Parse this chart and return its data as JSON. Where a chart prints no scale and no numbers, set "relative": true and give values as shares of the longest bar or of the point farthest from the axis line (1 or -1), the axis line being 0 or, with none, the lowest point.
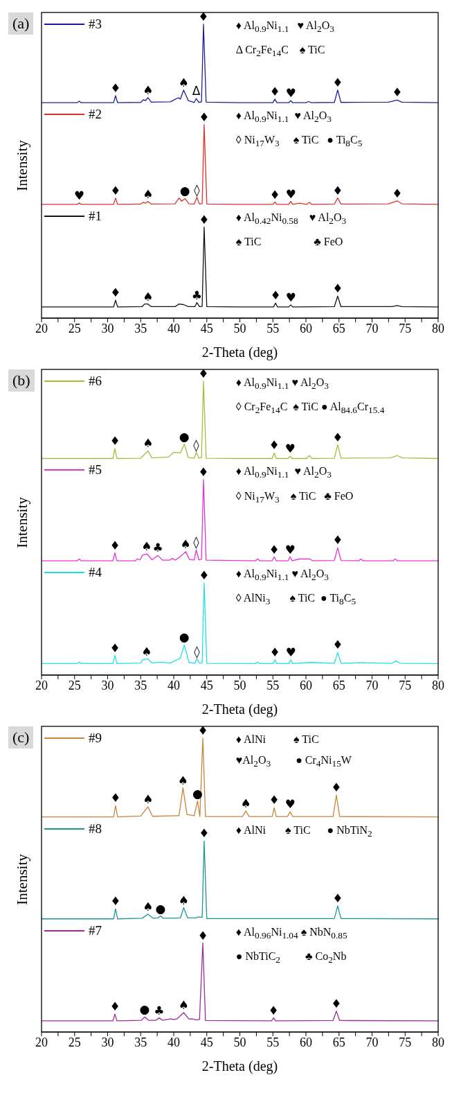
{
  "chart_data": [
    {
      "type": "line",
      "title": "(a)",
      "legend": "top left",
      "xlabel": "2-Theta (deg)",
      "ylabel": "Intensity",
      "relative": true,
      "xlim": [
        20,
        80
      ],
      "xticks": [
        20,
        {
          "value": 22.5,
          "label": null
        },
        25,
        {
          "value": 27.5,
          "label": null
        },
        30,
        {
          "value": 32.5,
          "label": null
        },
        35,
        {
          "value": 37.5,
          "label": null
        },
        40,
        {
          "value": 42.5,
          "label": null
        },
        45,
        {
          "value": 47.5,
          "label": null
        },
        50,
        {
          "value": 52.5,
          "label": null
        },
        55,
        {
          "value": 57.5,
          "label": null
        },
        60,
        {
          "value": 62.5,
          "label": null
        },
        65,
        {
          "value": 67.5,
          "label": null
        },
        70,
        {
          "value": 72.5,
          "label": null
        },
        75,
        {
          "value": 77.5,
          "label": null
        },
        80
      ],
      "series": [
        {
          "name": "#3",
          "color": "#1c1c99",
          "x": [
            20,
            25.4,
            25.7,
            26.0,
            30.9,
            31.2,
            31.5,
            35.0,
            35.4,
            35.7,
            36.1,
            36.6,
            39.5,
            40.7,
            41.0,
            41.5,
            42.2,
            43.1,
            43.4,
            43.8,
            44.2,
            44.5,
            44.9,
            50,
            55.0,
            55.3,
            55.6,
            57.4,
            57.7,
            58.0,
            60.0,
            60.4,
            60.8,
            64.3,
            64.8,
            65.3,
            72.5,
            73.8,
            74.5,
            80
          ],
          "values": [
            0.733,
            0.733,
            0.738,
            0.733,
            0.733,
            0.757,
            0.733,
            0.734,
            0.743,
            0.74,
            0.75,
            0.735,
            0.736,
            0.75,
            0.745,
            0.776,
            0.74,
            0.734,
            0.747,
            0.734,
            0.736,
            1.0,
            0.735,
            0.733,
            0.733,
            0.745,
            0.733,
            0.733,
            0.74,
            0.733,
            0.733,
            0.737,
            0.733,
            0.734,
            0.776,
            0.734,
            0.735,
            0.742,
            0.735,
            0.733
          ]
        },
        {
          "name": "#2",
          "color": "#e0302a",
          "x": [
            20,
            25.4,
            25.7,
            26.0,
            30.9,
            31.2,
            31.5,
            35.0,
            35.4,
            35.7,
            36.1,
            36.6,
            40.2,
            40.8,
            41.2,
            41.7,
            42.3,
            43.1,
            43.5,
            43.9,
            44.3,
            44.6,
            45.0,
            50,
            55.0,
            55.3,
            55.6,
            57.4,
            57.7,
            58.0,
            59.0,
            60.1,
            60.5,
            60.9,
            64.3,
            64.8,
            65.3,
            72.5,
            73.8,
            74.5,
            80
          ],
          "values": [
            0.387,
            0.387,
            0.392,
            0.387,
            0.387,
            0.409,
            0.387,
            0.388,
            0.394,
            0.391,
            0.397,
            0.388,
            0.389,
            0.409,
            0.398,
            0.407,
            0.389,
            0.388,
            0.411,
            0.388,
            0.39,
            0.659,
            0.388,
            0.387,
            0.387,
            0.395,
            0.387,
            0.387,
            0.397,
            0.387,
            0.391,
            0.387,
            0.394,
            0.387,
            0.388,
            0.409,
            0.388,
            0.389,
            0.399,
            0.389,
            0.387
          ]
        },
        {
          "name": "#1",
          "color": "#111111",
          "x": [
            20,
            30.9,
            31.2,
            31.5,
            35.2,
            35.6,
            36.1,
            36.6,
            40.2,
            40.8,
            41.5,
            42.2,
            43.2,
            43.5,
            43.9,
            44.3,
            44.6,
            45.0,
            50,
            55.1,
            55.4,
            55.7,
            57.4,
            57.7,
            58.0,
            64.3,
            64.8,
            65.3,
            73.0,
            73.8,
            74.5,
            80
          ],
          "values": [
            0.038,
            0.038,
            0.061,
            0.038,
            0.039,
            0.048,
            0.048,
            0.039,
            0.039,
            0.048,
            0.046,
            0.039,
            0.039,
            0.053,
            0.039,
            0.04,
            0.31,
            0.039,
            0.038,
            0.038,
            0.051,
            0.038,
            0.038,
            0.045,
            0.038,
            0.039,
            0.075,
            0.039,
            0.039,
            0.043,
            0.039,
            0.038
          ]
        }
      ],
      "annotations": [
        "♦ Al$_{0.9}$Ni$_{1.1}$   ♥ Al$_{2}$O$_{3}$\nΔ Cr$_{2}$Fe$_{14}$C    ♠ TiC",
        "♦ Al$_{0.9}$Ni$_{1.1}$  ♥ Al$_{2}$O$_{3}$\n◊ Ni$_{17}$W$_{3}$     ♠ TiC   ● Ti$_{8}$C$_{5}$",
        "♦ Al$_{0.42}$Ni$_{0.58}$    ♥ Al$_{2}$O$_{3}$\n♠ TiC                   ♣ FeO",
        {
          "text": "♦",
          "x": 31.2,
          "y": 0.757
        },
        {
          "text": "♠",
          "x": 36.1,
          "y": 0.75
        },
        {
          "text": "♠",
          "x": 41.5,
          "y": 0.776
        },
        {
          "text": "Δ",
          "x": 43.4,
          "y": 0.747
        },
        {
          "text": "♦",
          "x": 44.5,
          "y": 1.0
        },
        {
          "text": "♦",
          "x": 55.3,
          "y": 0.745
        },
        {
          "text": "♥",
          "x": 57.7,
          "y": 0.74
        },
        {
          "text": "♦",
          "x": 64.8,
          "y": 0.776
        },
        {
          "text": "♦",
          "x": 73.8,
          "y": 0.742
        },
        {
          "text": "♥",
          "x": 25.7,
          "y": 0.392
        },
        {
          "text": "♦",
          "x": 31.2,
          "y": 0.409
        },
        {
          "text": "♠",
          "x": 36.1,
          "y": 0.397
        },
        {
          "text": "●",
          "x": 41.7,
          "y": 0.407
        },
        {
          "text": "◊",
          "x": 43.5,
          "y": 0.411
        },
        {
          "text": "♦",
          "x": 44.6,
          "y": 0.659
        },
        {
          "text": "♦",
          "x": 55.3,
          "y": 0.395
        },
        {
          "text": "♥",
          "x": 57.7,
          "y": 0.397
        },
        {
          "text": "♦",
          "x": 64.8,
          "y": 0.409
        },
        {
          "text": "♦",
          "x": 73.8,
          "y": 0.399
        },
        {
          "text": "♦",
          "x": 31.2,
          "y": 0.061
        },
        {
          "text": "♠",
          "x": 36.1,
          "y": 0.048
        },
        {
          "text": "♣",
          "x": 43.5,
          "y": 0.053
        },
        {
          "text": "♦",
          "x": 44.6,
          "y": 0.31
        },
        {
          "text": "♦",
          "x": 55.4,
          "y": 0.051
        },
        {
          "text": "♥",
          "x": 57.7,
          "y": 0.045
        },
        {
          "text": "♦",
          "x": 64.8,
          "y": 0.075
        }
      ]
    },
    {
      "type": "line",
      "title": "(b)",
      "legend": "top left",
      "xlabel": "2-Theta (deg)",
      "ylabel": "Intensity",
      "relative": true,
      "xlim": [
        20,
        80
      ],
      "xticks": [
        20,
        {
          "value": 22.5,
          "label": null
        },
        25,
        {
          "value": 27.5,
          "label": null
        },
        30,
        {
          "value": 32.5,
          "label": null
        },
        35,
        {
          "value": 37.5,
          "label": null
        },
        40,
        {
          "value": 42.5,
          "label": null
        },
        45,
        {
          "value": 47.5,
          "label": null
        },
        50,
        {
          "value": 52.5,
          "label": null
        },
        55,
        {
          "value": 57.5,
          "label": null
        },
        60,
        {
          "value": 62.5,
          "label": null
        },
        65,
        {
          "value": 67.5,
          "label": null
        },
        70,
        {
          "value": 72.5,
          "label": null
        },
        75,
        {
          "value": 77.5,
          "label": null
        },
        80
      ],
      "series": [
        {
          "name": "#6",
          "color": "#a6bd3c",
          "x": [
            20,
            30.8,
            31.1,
            31.4,
            35.0,
            35.4,
            36.1,
            36.7,
            39.2,
            40.0,
            41.0,
            41.6,
            42.2,
            43.1,
            43.4,
            43.8,
            44.2,
            44.5,
            44.9,
            50,
            54.9,
            55.2,
            55.5,
            57.3,
            57.6,
            57.9,
            60.1,
            60.5,
            60.9,
            64.3,
            64.8,
            65.3,
            72.8,
            73.8,
            74.6,
            80
          ],
          "values": [
            0.737,
            0.737,
            0.77,
            0.737,
            0.738,
            0.747,
            0.763,
            0.739,
            0.742,
            0.758,
            0.756,
            0.786,
            0.74,
            0.738,
            0.758,
            0.738,
            0.74,
            1.0,
            0.738,
            0.737,
            0.737,
            0.756,
            0.737,
            0.737,
            0.745,
            0.737,
            0.737,
            0.747,
            0.737,
            0.738,
            0.784,
            0.738,
            0.739,
            0.747,
            0.739,
            0.737
          ]
        },
        {
          "name": "#5",
          "color": "#e232d8",
          "x": [
            20,
            25.4,
            25.7,
            26.0,
            30.8,
            31.1,
            31.4,
            34.2,
            34.5,
            34.9,
            35.3,
            36.0,
            36.7,
            37.6,
            38.3,
            39.4,
            39.8,
            40.2,
            41.0,
            41.8,
            42.4,
            43.1,
            43.4,
            43.8,
            44.2,
            44.5,
            44.9,
            52.4,
            52.7,
            53.0,
            54.9,
            55.2,
            55.5,
            57.3,
            57.6,
            57.9,
            59.0,
            60.6,
            61.0,
            64.3,
            64.8,
            65.3,
            68.0,
            68.3,
            68.6,
            73.2,
            73.5,
            73.8,
            80
          ],
          "values": [
            0.389,
            0.389,
            0.395,
            0.389,
            0.389,
            0.416,
            0.389,
            0.389,
            0.395,
            0.392,
            0.409,
            0.412,
            0.392,
            0.407,
            0.391,
            0.391,
            0.397,
            0.391,
            0.403,
            0.42,
            0.393,
            0.392,
            0.426,
            0.392,
            0.394,
            0.665,
            0.391,
            0.389,
            0.395,
            0.389,
            0.389,
            0.402,
            0.389,
            0.389,
            0.402,
            0.389,
            0.395,
            0.395,
            0.389,
            0.39,
            0.433,
            0.39,
            0.389,
            0.395,
            0.389,
            0.389,
            0.395,
            0.389,
            0.389
          ]
        },
        {
          "name": "#4",
          "color": "#1ee0e6",
          "x": [
            20,
            25.4,
            25.7,
            26.0,
            30.8,
            31.1,
            31.4,
            35.0,
            35.3,
            36.1,
            36.7,
            38.0,
            39.5,
            40.5,
            41.0,
            41.6,
            42.3,
            43.2,
            43.5,
            43.9,
            44.3,
            44.6,
            45.0,
            52.4,
            52.7,
            53.0,
            55.0,
            55.3,
            55.6,
            57.4,
            57.7,
            58.0,
            60.8,
            64.3,
            64.8,
            65.3,
            68.3,
            73.0,
            73.6,
            74.3,
            80
          ],
          "values": [
            0.039,
            0.039,
            0.044,
            0.039,
            0.039,
            0.067,
            0.039,
            0.041,
            0.052,
            0.055,
            0.041,
            0.044,
            0.041,
            0.052,
            0.058,
            0.103,
            0.043,
            0.04,
            0.055,
            0.04,
            0.042,
            0.314,
            0.04,
            0.039,
            0.044,
            0.039,
            0.039,
            0.052,
            0.039,
            0.039,
            0.052,
            0.039,
            0.043,
            0.04,
            0.077,
            0.04,
            0.042,
            0.04,
            0.048,
            0.04,
            0.039
          ]
        }
      ],
      "annotations": [
        "♦ Al$_{0.9}$Ni$_{1.1}$ ♥ Al$_{2}$O$_{3}$\n◊ Cr$_{2}$Fe$_{14}$C  ♠ TiC ● Al$_{84.6}$Cr$_{15.4}$",
        "♦ Al$_{0.9}$Ni$_{1.1}$  ♥ Al$_{2}$O$_{3}$\n◊ Ni$_{17}$W$_{3}$    ♠ TiC   ♣ FeO",
        "♦ Al$_{0.9}$Ni$_{1.1}$ ♥ Al$_{2}$O$_{3}$\n◊ AlNi$_{3}$       ♠ TiC  ● Ti$_{8}$C$_{5}$",
        {
          "text": "♦",
          "x": 31.1,
          "y": 0.77
        },
        {
          "text": "♠",
          "x": 36.1,
          "y": 0.763
        },
        {
          "text": "●",
          "x": 41.6,
          "y": 0.786
        },
        {
          "text": "◊",
          "x": 43.4,
          "y": 0.758
        },
        {
          "text": "♦",
          "x": 44.5,
          "y": 1.0
        },
        {
          "text": "♦",
          "x": 55.2,
          "y": 0.756
        },
        {
          "text": "♥",
          "x": 57.6,
          "y": 0.745
        },
        {
          "text": "♦",
          "x": 64.8,
          "y": 0.784
        },
        {
          "text": "♦",
          "x": 31.1,
          "y": 0.416
        },
        {
          "text": "♠",
          "x": 35.9,
          "y": 0.412
        },
        {
          "text": "♣",
          "x": 37.6,
          "y": 0.407
        },
        {
          "text": "♠",
          "x": 41.8,
          "y": 0.42
        },
        {
          "text": "◊",
          "x": 43.4,
          "y": 0.426
        },
        {
          "text": "♦",
          "x": 44.5,
          "y": 0.665
        },
        {
          "text": "♦",
          "x": 55.2,
          "y": 0.402
        },
        {
          "text": "♥",
          "x": 57.6,
          "y": 0.402
        },
        {
          "text": "♦",
          "x": 64.8,
          "y": 0.433
        },
        {
          "text": "♦",
          "x": 31.1,
          "y": 0.067
        },
        {
          "text": "♠",
          "x": 35.9,
          "y": 0.055
        },
        {
          "text": "●",
          "x": 41.6,
          "y": 0.103
        },
        {
          "text": "◊",
          "x": 43.5,
          "y": 0.055
        },
        {
          "text": "♦",
          "x": 44.6,
          "y": 0.314
        },
        {
          "text": "♦",
          "x": 55.3,
          "y": 0.052
        },
        {
          "text": "♥",
          "x": 57.7,
          "y": 0.052
        },
        {
          "text": "♦",
          "x": 64.8,
          "y": 0.077
        }
      ]
    },
    {
      "type": "line",
      "title": "(c)",
      "legend": "top left",
      "xlabel": "2-Theta (deg)",
      "ylabel": "Intensity",
      "relative": true,
      "xlim": [
        20,
        80
      ],
      "xticks": [
        20,
        {
          "value": 22.5,
          "label": null
        },
        25,
        {
          "value": 27.5,
          "label": null
        },
        30,
        {
          "value": 32.5,
          "label": null
        },
        35,
        {
          "value": 37.5,
          "label": null
        },
        40,
        {
          "value": 42.5,
          "label": null
        },
        45,
        {
          "value": 47.5,
          "label": null
        },
        50,
        {
          "value": 52.5,
          "label": null
        },
        55,
        {
          "value": 57.5,
          "label": null
        },
        60,
        {
          "value": 62.5,
          "label": null
        },
        65,
        {
          "value": 67.5,
          "label": null
        },
        70,
        {
          "value": 72.5,
          "label": null
        },
        75,
        {
          "value": 77.5,
          "label": null
        },
        80
      ],
      "series": [
        {
          "name": "#9",
          "color": "#c8843a",
          "x": [
            20,
            30.9,
            31.2,
            31.5,
            35.0,
            35.6,
            36.1,
            36.8,
            40.8,
            41.4,
            42.0,
            43.1,
            43.6,
            43.95,
            44.4,
            44.8,
            50.4,
            50.9,
            51.4,
            54.9,
            55.2,
            55.5,
            57.2,
            57.6,
            58.0,
            64.1,
            64.6,
            65.1,
            80
          ],
          "values": [
            0.732,
            0.732,
            0.77,
            0.732,
            0.735,
            0.752,
            0.766,
            0.734,
            0.736,
            0.831,
            0.74,
            0.736,
            0.786,
            0.733,
            1.0,
            0.733,
            0.733,
            0.752,
            0.733,
            0.733,
            0.763,
            0.733,
            0.733,
            0.749,
            0.733,
            0.733,
            0.806,
            0.733,
            0.732
          ]
        },
        {
          "name": "#8",
          "color": "#1c9595",
          "x": [
            20,
            30.9,
            31.2,
            31.5,
            35.2,
            36.1,
            36.9,
            37.6,
            38.0,
            38.4,
            41.0,
            41.5,
            42.1,
            43.4,
            43.7,
            44.3,
            44.6,
            45.0,
            64.3,
            64.8,
            65.3,
            80
          ],
          "values": [
            0.385,
            0.385,
            0.419,
            0.385,
            0.387,
            0.401,
            0.387,
            0.388,
            0.395,
            0.387,
            0.388,
            0.423,
            0.388,
            0.388,
            0.392,
            0.39,
            0.65,
            0.386,
            0.386,
            0.429,
            0.386,
            0.385
          ]
        },
        {
          "name": "#7",
          "color": "#9a2a9a",
          "x": [
            20,
            30.8,
            31.1,
            31.4,
            35.1,
            35.6,
            36.2,
            37.3,
            37.8,
            38.3,
            39.6,
            40.0,
            40.5,
            41.5,
            42.3,
            42.7,
            43.4,
            43.9,
            44.4,
            44.8,
            54.8,
            55.1,
            55.4,
            64.1,
            64.6,
            65.1,
            80
          ],
          "values": [
            0.038,
            0.038,
            0.061,
            0.038,
            0.04,
            0.051,
            0.04,
            0.04,
            0.048,
            0.04,
            0.045,
            0.042,
            0.045,
            0.066,
            0.044,
            0.045,
            0.041,
            0.043,
            0.303,
            0.039,
            0.038,
            0.048,
            0.038,
            0.039,
            0.071,
            0.039,
            0.038
          ]
        }
      ],
      "annotations": [
        "♦ AlNi          ♠ TiC\n♥Al$_{2}$O$_{3}$         ● Cr$_{4}$Ni$_{15}$W",
        "♦ AlNi       ♠ TiC      ● NbTiN$_{2}$",
        "♦ Al$_{0.96}$Ni$_{1.04}$ ♠ NbN$_{0.85}$\n● NbTiC$_{2}$         ♣ Co$_{2}$Nb",
        {
          "text": "♦",
          "x": 31.2,
          "y": 0.77
        },
        {
          "text": "♠",
          "x": 36.1,
          "y": 0.766
        },
        {
          "text": "♠",
          "x": 41.4,
          "y": 0.831
        },
        {
          "text": "●",
          "x": 43.6,
          "y": 0.786
        },
        {
          "text": "♦",
          "x": 44.4,
          "y": 1.0
        },
        {
          "text": "♠",
          "x": 50.9,
          "y": 0.752
        },
        {
          "text": "♦",
          "x": 55.2,
          "y": 0.763
        },
        {
          "text": "♥",
          "x": 57.6,
          "y": 0.749
        },
        {
          "text": "♦",
          "x": 64.6,
          "y": 0.806
        },
        {
          "text": "♦",
          "x": 31.2,
          "y": 0.419
        },
        {
          "text": "♠",
          "x": 36.1,
          "y": 0.401
        },
        {
          "text": "●",
          "x": 38.0,
          "y": 0.395
        },
        {
          "text": "♠",
          "x": 41.5,
          "y": 0.423
        },
        {
          "text": "♦",
          "x": 44.6,
          "y": 0.65
        },
        {
          "text": "♦",
          "x": 64.8,
          "y": 0.429
        },
        {
          "text": "♦",
          "x": 31.1,
          "y": 0.061
        },
        {
          "text": "●",
          "x": 35.6,
          "y": 0.051
        },
        {
          "text": "♣",
          "x": 37.8,
          "y": 0.048
        },
        {
          "text": "♠",
          "x": 41.5,
          "y": 0.066
        },
        {
          "text": "♦",
          "x": 44.4,
          "y": 0.303
        },
        {
          "text": "♦",
          "x": 55.1,
          "y": 0.048
        },
        {
          "text": "♦",
          "x": 64.6,
          "y": 0.071
        }
      ]
    }
  ]
}
